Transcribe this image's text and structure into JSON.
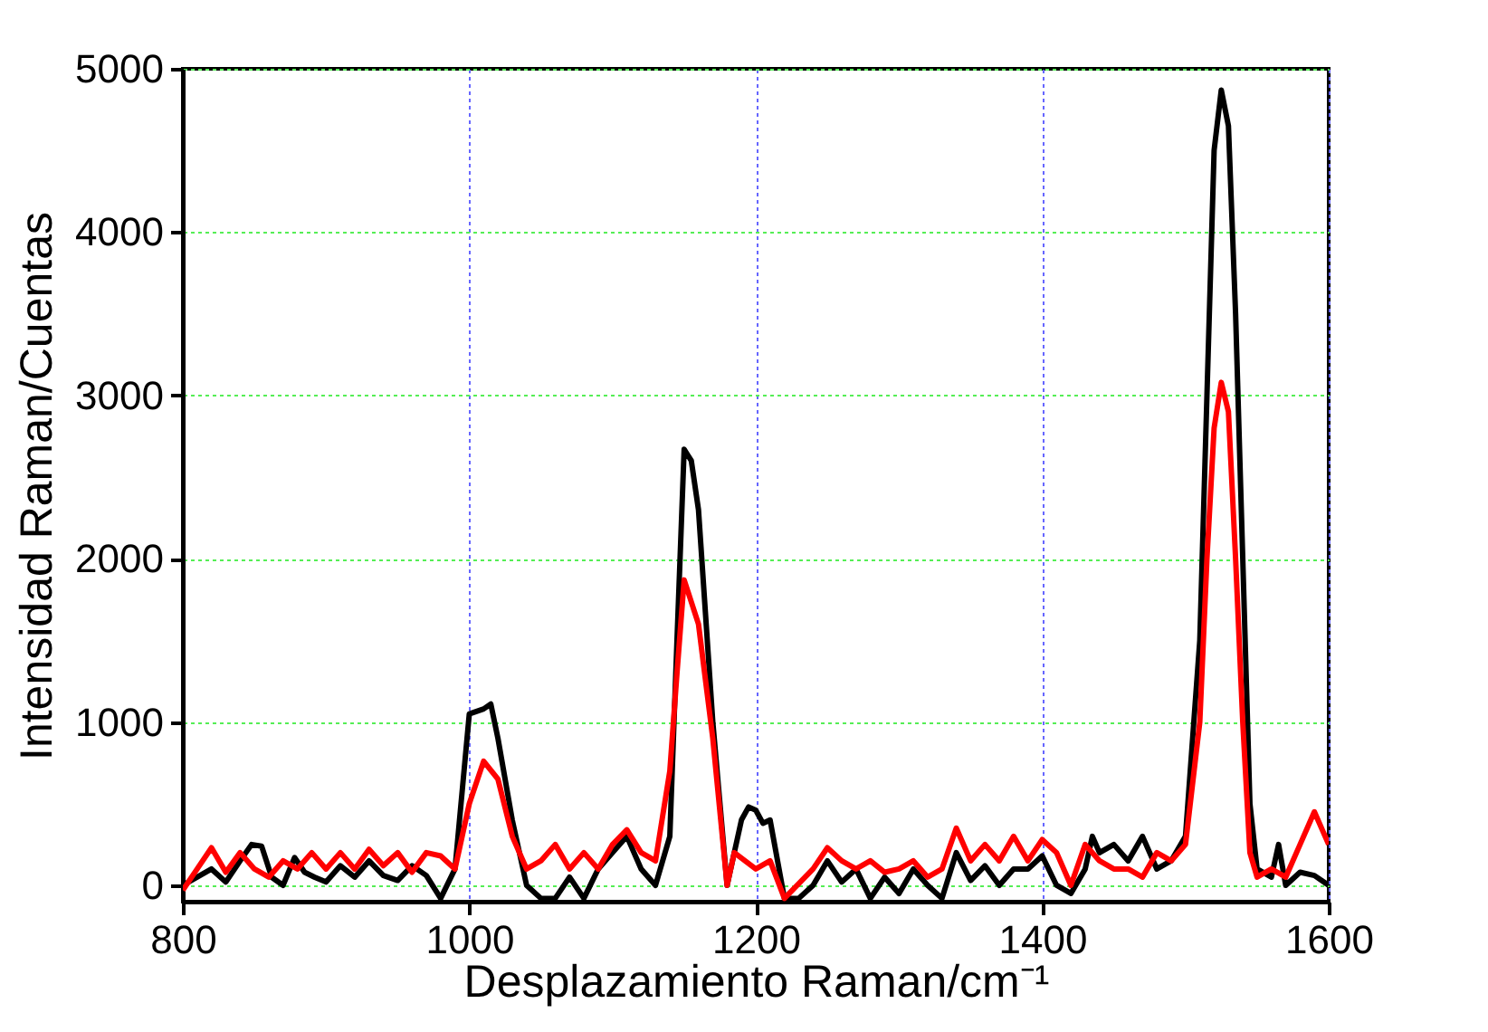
{
  "chart_data": {
    "type": "line",
    "xlabel": "Desplazamiento Raman/cm⁻¹",
    "ylabel": "Intensidad Raman/Cuentas",
    "xlim": [
      800,
      1600
    ],
    "xticks": [
      800,
      1000,
      1200,
      1400,
      1600
    ],
    "ylim": [
      -100,
      5000
    ],
    "yticks": [
      0,
      1000,
      2000,
      3000,
      4000,
      5000
    ],
    "grid": true,
    "line_style": "solid",
    "series": [
      {
        "color": "#000000",
        "x": [
          800,
          810,
          820,
          830,
          840,
          848,
          855,
          862,
          870,
          878,
          885,
          892,
          900,
          910,
          920,
          930,
          940,
          950,
          960,
          970,
          980,
          990,
          1000,
          1010,
          1015,
          1020,
          1030,
          1040,
          1050,
          1060,
          1070,
          1080,
          1090,
          1100,
          1110,
          1120,
          1130,
          1140,
          1145,
          1150,
          1155,
          1160,
          1170,
          1180,
          1190,
          1195,
          1200,
          1205,
          1210,
          1220,
          1230,
          1240,
          1250,
          1260,
          1270,
          1280,
          1290,
          1300,
          1310,
          1320,
          1330,
          1340,
          1350,
          1360,
          1370,
          1380,
          1390,
          1400,
          1410,
          1420,
          1430,
          1435,
          1440,
          1450,
          1460,
          1470,
          1480,
          1490,
          1500,
          1510,
          1515,
          1520,
          1525,
          1530,
          1535,
          1540,
          1545,
          1550,
          1560,
          1565,
          1570,
          1580,
          1590,
          1600
        ],
        "values": [
          0,
          50,
          100,
          20,
          150,
          250,
          240,
          50,
          0,
          170,
          80,
          50,
          20,
          120,
          50,
          150,
          60,
          30,
          120,
          60,
          -80,
          100,
          1050,
          1080,
          1110,
          900,
          400,
          0,
          -80,
          -80,
          50,
          -80,
          100,
          200,
          300,
          100,
          0,
          300,
          1500,
          2670,
          2600,
          2300,
          1000,
          0,
          400,
          480,
          460,
          380,
          400,
          -80,
          -80,
          0,
          150,
          20,
          100,
          -80,
          50,
          -50,
          100,
          0,
          -80,
          200,
          30,
          120,
          0,
          100,
          100,
          180,
          0,
          -50,
          100,
          300,
          200,
          250,
          150,
          300,
          100,
          150,
          300,
          1500,
          3000,
          4500,
          4870,
          4650,
          3500,
          2000,
          500,
          100,
          50,
          250,
          0,
          80,
          60,
          0
        ]
      },
      {
        "color": "#ff0000",
        "x": [
          800,
          810,
          820,
          830,
          840,
          850,
          860,
          870,
          880,
          890,
          900,
          910,
          920,
          930,
          940,
          950,
          960,
          970,
          980,
          990,
          1000,
          1010,
          1020,
          1030,
          1040,
          1050,
          1060,
          1070,
          1080,
          1090,
          1100,
          1110,
          1120,
          1130,
          1140,
          1145,
          1150,
          1160,
          1170,
          1180,
          1185,
          1200,
          1210,
          1220,
          1240,
          1250,
          1260,
          1270,
          1280,
          1290,
          1300,
          1310,
          1320,
          1330,
          1340,
          1350,
          1360,
          1370,
          1380,
          1390,
          1400,
          1410,
          1420,
          1430,
          1440,
          1450,
          1460,
          1470,
          1480,
          1490,
          1500,
          1510,
          1515,
          1520,
          1525,
          1530,
          1535,
          1540,
          1545,
          1550,
          1560,
          1570,
          1580,
          1590,
          1600
        ],
        "values": [
          -30,
          100,
          230,
          80,
          200,
          100,
          50,
          150,
          100,
          200,
          100,
          200,
          100,
          220,
          120,
          200,
          80,
          200,
          180,
          100,
          500,
          760,
          650,
          300,
          100,
          150,
          250,
          100,
          200,
          100,
          250,
          340,
          200,
          150,
          700,
          1300,
          1870,
          1600,
          900,
          0,
          200,
          100,
          150,
          -80,
          100,
          230,
          150,
          100,
          150,
          80,
          100,
          150,
          50,
          100,
          350,
          150,
          250,
          150,
          300,
          150,
          280,
          200,
          0,
          250,
          150,
          100,
          100,
          50,
          200,
          150,
          250,
          1000,
          2000,
          2800,
          3080,
          2900,
          2000,
          1000,
          200,
          50,
          100,
          50,
          250,
          450,
          250
        ]
      }
    ]
  }
}
